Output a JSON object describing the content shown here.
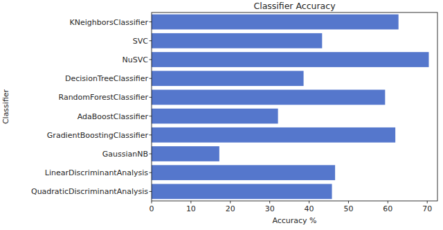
{
  "chart_data": {
    "type": "bar",
    "orientation": "horizontal",
    "title": "Classifier Accuracy",
    "x_label": "Accuracy %",
    "y_label": "Classifier",
    "categories": [
      "KNeighborsClassifier",
      "SVC",
      "NuSVC",
      "DecisionTreeClassifier",
      "RandomForestClassifier",
      "AdaBoostClassifier",
      "GradientBoostingClassifier",
      "GaussianNB",
      "LinearDiscriminantAnalysis",
      "QuadraticDiscriminantAnalysis"
    ],
    "values": [
      62.7,
      43.3,
      70.4,
      38.6,
      59.3,
      32.1,
      61.9,
      17.2,
      46.6,
      45.8
    ],
    "color": "#5577cc",
    "xlim": [
      0,
      72.6
    ],
    "xticks": [
      0,
      10,
      20,
      30,
      40,
      50,
      60,
      70
    ],
    "grid": false
  }
}
